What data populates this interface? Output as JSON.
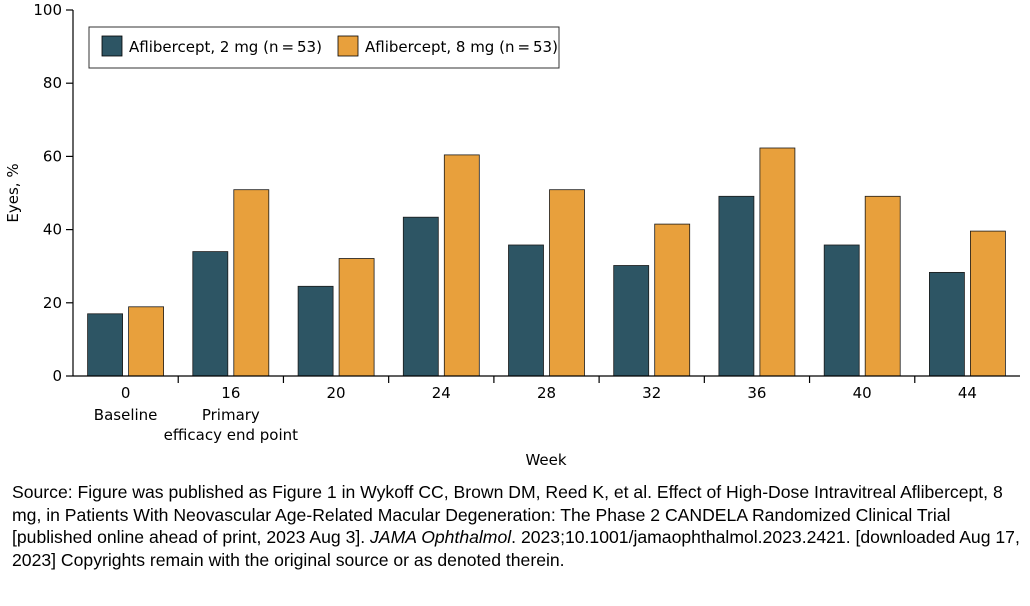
{
  "chart_data": {
    "type": "bar",
    "title": "",
    "ylabel": "Eyes, %",
    "xlabel": "Week",
    "ylim": [
      0,
      100
    ],
    "yticks": [
      "0",
      "20",
      "40",
      "60",
      "80",
      "100"
    ],
    "categories": [
      "0",
      "16",
      "20",
      "24",
      "28",
      "32",
      "36",
      "40",
      "44"
    ],
    "category_sublabels": [
      [
        "Baseline"
      ],
      [
        "Primary",
        "efficacy end point"
      ],
      [],
      [],
      [],
      [],
      [],
      [],
      []
    ],
    "series": [
      {
        "name": "Aflibercept, 2 mg (n = 53)",
        "color": "#2d5564",
        "values": [
          17.0,
          34.0,
          24.5,
          43.4,
          35.8,
          30.2,
          49.1,
          35.8,
          28.3
        ]
      },
      {
        "name": "Aflibercept, 8 mg (n = 53)",
        "color": "#e8a03c",
        "values": [
          18.9,
          50.9,
          32.1,
          60.4,
          50.9,
          41.5,
          62.3,
          49.1,
          39.6
        ]
      }
    ],
    "legend_position": "top-left",
    "grid": false
  },
  "source": {
    "prefix": "Source: Figure was published as Figure 1 in  Wykoff CC, Brown DM, Reed K, et al. Effect of High-Dose Intravitreal Aflibercept, 8 mg, in Patients With Neovascular Age-Related Macular Degeneration: The Phase 2 CANDELA Randomized Clinical Trial [published online ahead of print, 2023 Aug 3]. ",
    "journal": "JAMA Ophthalmol",
    "suffix": ". 2023;10.1001/jamaophthalmol.2023.2421. [downloaded Aug 17, 2023] Copyrights remain with the original source or as denoted therein."
  }
}
